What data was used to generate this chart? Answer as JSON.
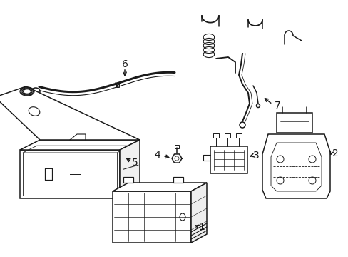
{
  "bg_color": "#ffffff",
  "line_color": "#1a1a1a",
  "line_width": 1.1,
  "label_fontsize": 10,
  "figsize": [
    4.89,
    3.6
  ],
  "dpi": 100
}
